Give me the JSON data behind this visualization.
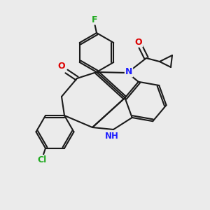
{
  "background_color": "#ebebeb",
  "bond_color": "#1a1a1a",
  "atom_colors": {
    "N": "#2020ff",
    "O": "#dd0000",
    "F": "#22aa22",
    "Cl": "#22aa22",
    "NH_color": "#2020ff"
  },
  "figsize": [
    3.0,
    3.0
  ],
  "dpi": 100
}
